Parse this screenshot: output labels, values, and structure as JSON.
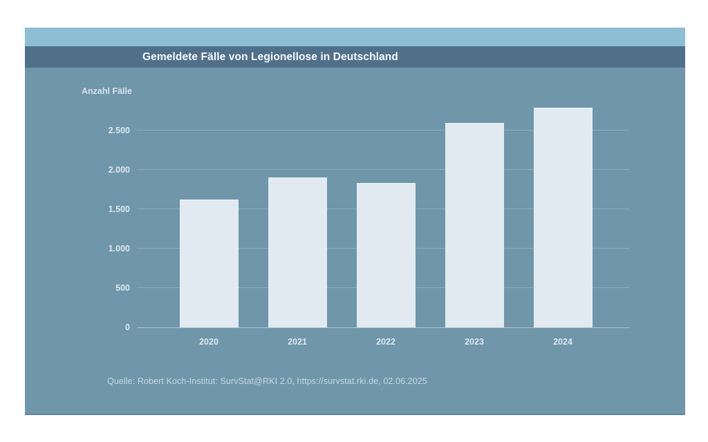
{
  "chart_data": {
    "type": "bar",
    "title": "Gemeldete Fälle von Legionellose in Deutschland",
    "ylabel": "Anzahl Fälle",
    "xlabel": "",
    "categories": [
      "2020",
      "2021",
      "2022",
      "2023",
      "2024"
    ],
    "values": [
      1620,
      1900,
      1830,
      2590,
      2790
    ],
    "ylim": [
      0,
      2900
    ],
    "yticks": [
      0,
      500,
      1000,
      1500,
      2000,
      2500
    ],
    "ytick_labels": [
      "0",
      "500",
      "1.000",
      "1.500",
      "2.000",
      "2.500"
    ],
    "grid": true,
    "legend_position": "none",
    "source": "Quelle: Robert Koch-Institut: SurvStat@RKI 2.0, https://survstat.rki.de, 02.06.2025"
  },
  "colors": {
    "page_bg": "#ffffff",
    "top_strip": "#8ebed4",
    "title_band": "#50708a",
    "title_text": "#f7fafc",
    "chart_bg": "#6f96a9",
    "bar_fill": "#e2eaf1",
    "gridline": "#88aabb",
    "tick_text": "#dce8ef",
    "axis_title_text": "#d5e3ec",
    "source_text": "#c6d9e4",
    "bottom_edge": "#5f8598"
  }
}
